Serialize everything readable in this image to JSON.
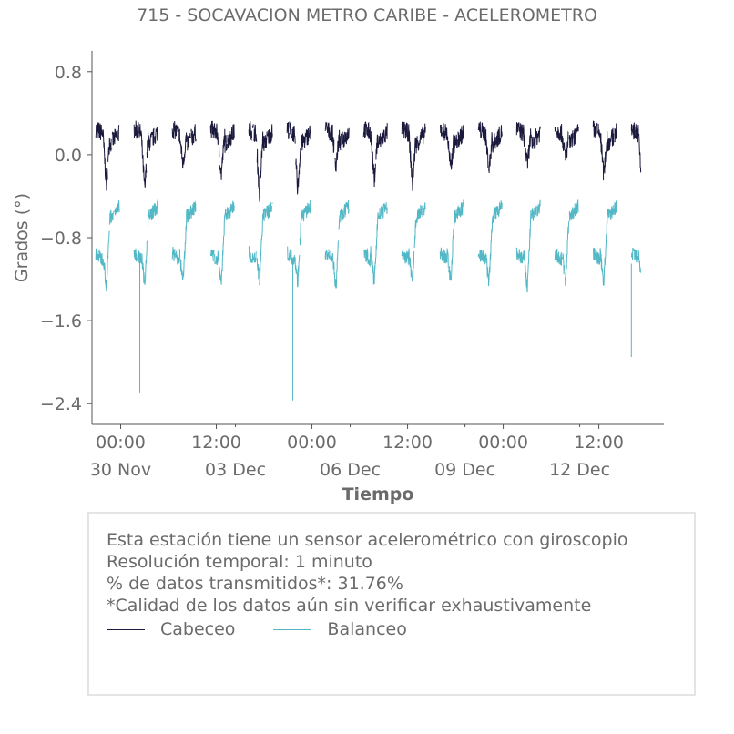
{
  "chart_data": {
    "type": "line",
    "title": "715 - SOCAVACION METRO CARIBE - ACELEROMETRO",
    "xlabel": "Tiempo",
    "ylabel": "Grados (°)",
    "ylim": [
      -2.6,
      1.0
    ],
    "xlim_days": [
      -0.75,
      14.2
    ],
    "x_unit": "days since 29 Nov 00:00",
    "yticks": [
      {
        "value": 0.8,
        "label": "0.8"
      },
      {
        "value": 0.0,
        "label": "0.0"
      },
      {
        "value": -0.8,
        "label": "−0.8"
      },
      {
        "value": -1.6,
        "label": "−1.6"
      },
      {
        "value": -2.4,
        "label": "−2.4"
      }
    ],
    "xticks_hour": [
      {
        "day": 0,
        "label": "00:00"
      },
      {
        "day": 2.5,
        "label": "12:00"
      },
      {
        "day": 5,
        "label": "00:00"
      },
      {
        "day": 7.5,
        "label": "12:00"
      },
      {
        "day": 10,
        "label": "00:00"
      },
      {
        "day": 12.5,
        "label": "12:00"
      }
    ],
    "xticks_date": [
      {
        "day": 0,
        "label": "30 Nov"
      },
      {
        "day": 3,
        "label": "03 Dec"
      },
      {
        "day": 6,
        "label": "06 Dec"
      },
      {
        "day": 9,
        "label": "09 Dec"
      },
      {
        "day": 12,
        "label": "12 Dec"
      }
    ],
    "series": [
      {
        "name": "Cabeceo",
        "color": "#1b1a3d",
        "daily_pattern": {
          "start": 0.22,
          "dip_start": 0.2,
          "dip_min": -0.3,
          "end": 0.2
        },
        "dips": [
          -0.3,
          -0.35,
          -0.1,
          -0.2,
          -0.4,
          -0.35,
          -0.1,
          -0.25,
          -0.3,
          -0.15,
          -0.15,
          -0.1,
          -0.05,
          -0.2,
          -0.35
        ]
      },
      {
        "name": "Balanceo",
        "color": "#52b8c6",
        "daily_pattern": {
          "start": -0.95,
          "dip_min": -1.25,
          "rise": -0.45
        },
        "spikes": [
          {
            "day": 0.5,
            "value": -2.3
          },
          {
            "day": 4.5,
            "value": -2.37
          },
          {
            "day": 13.35,
            "value": -1.95
          }
        ]
      }
    ]
  },
  "info": {
    "line1": "Esta estación tiene un sensor acelerométrico con giroscopio",
    "line2": "Resolución temporal: 1 minuto",
    "line3": "% de datos transmitidos*: 31.76%",
    "line4": "*Calidad de los datos aún sin verificar exhaustivamente"
  },
  "legend": [
    {
      "label": "Cabeceo",
      "color": "#1b1a3d"
    },
    {
      "label": "Balanceo",
      "color": "#52b8c6"
    }
  ]
}
